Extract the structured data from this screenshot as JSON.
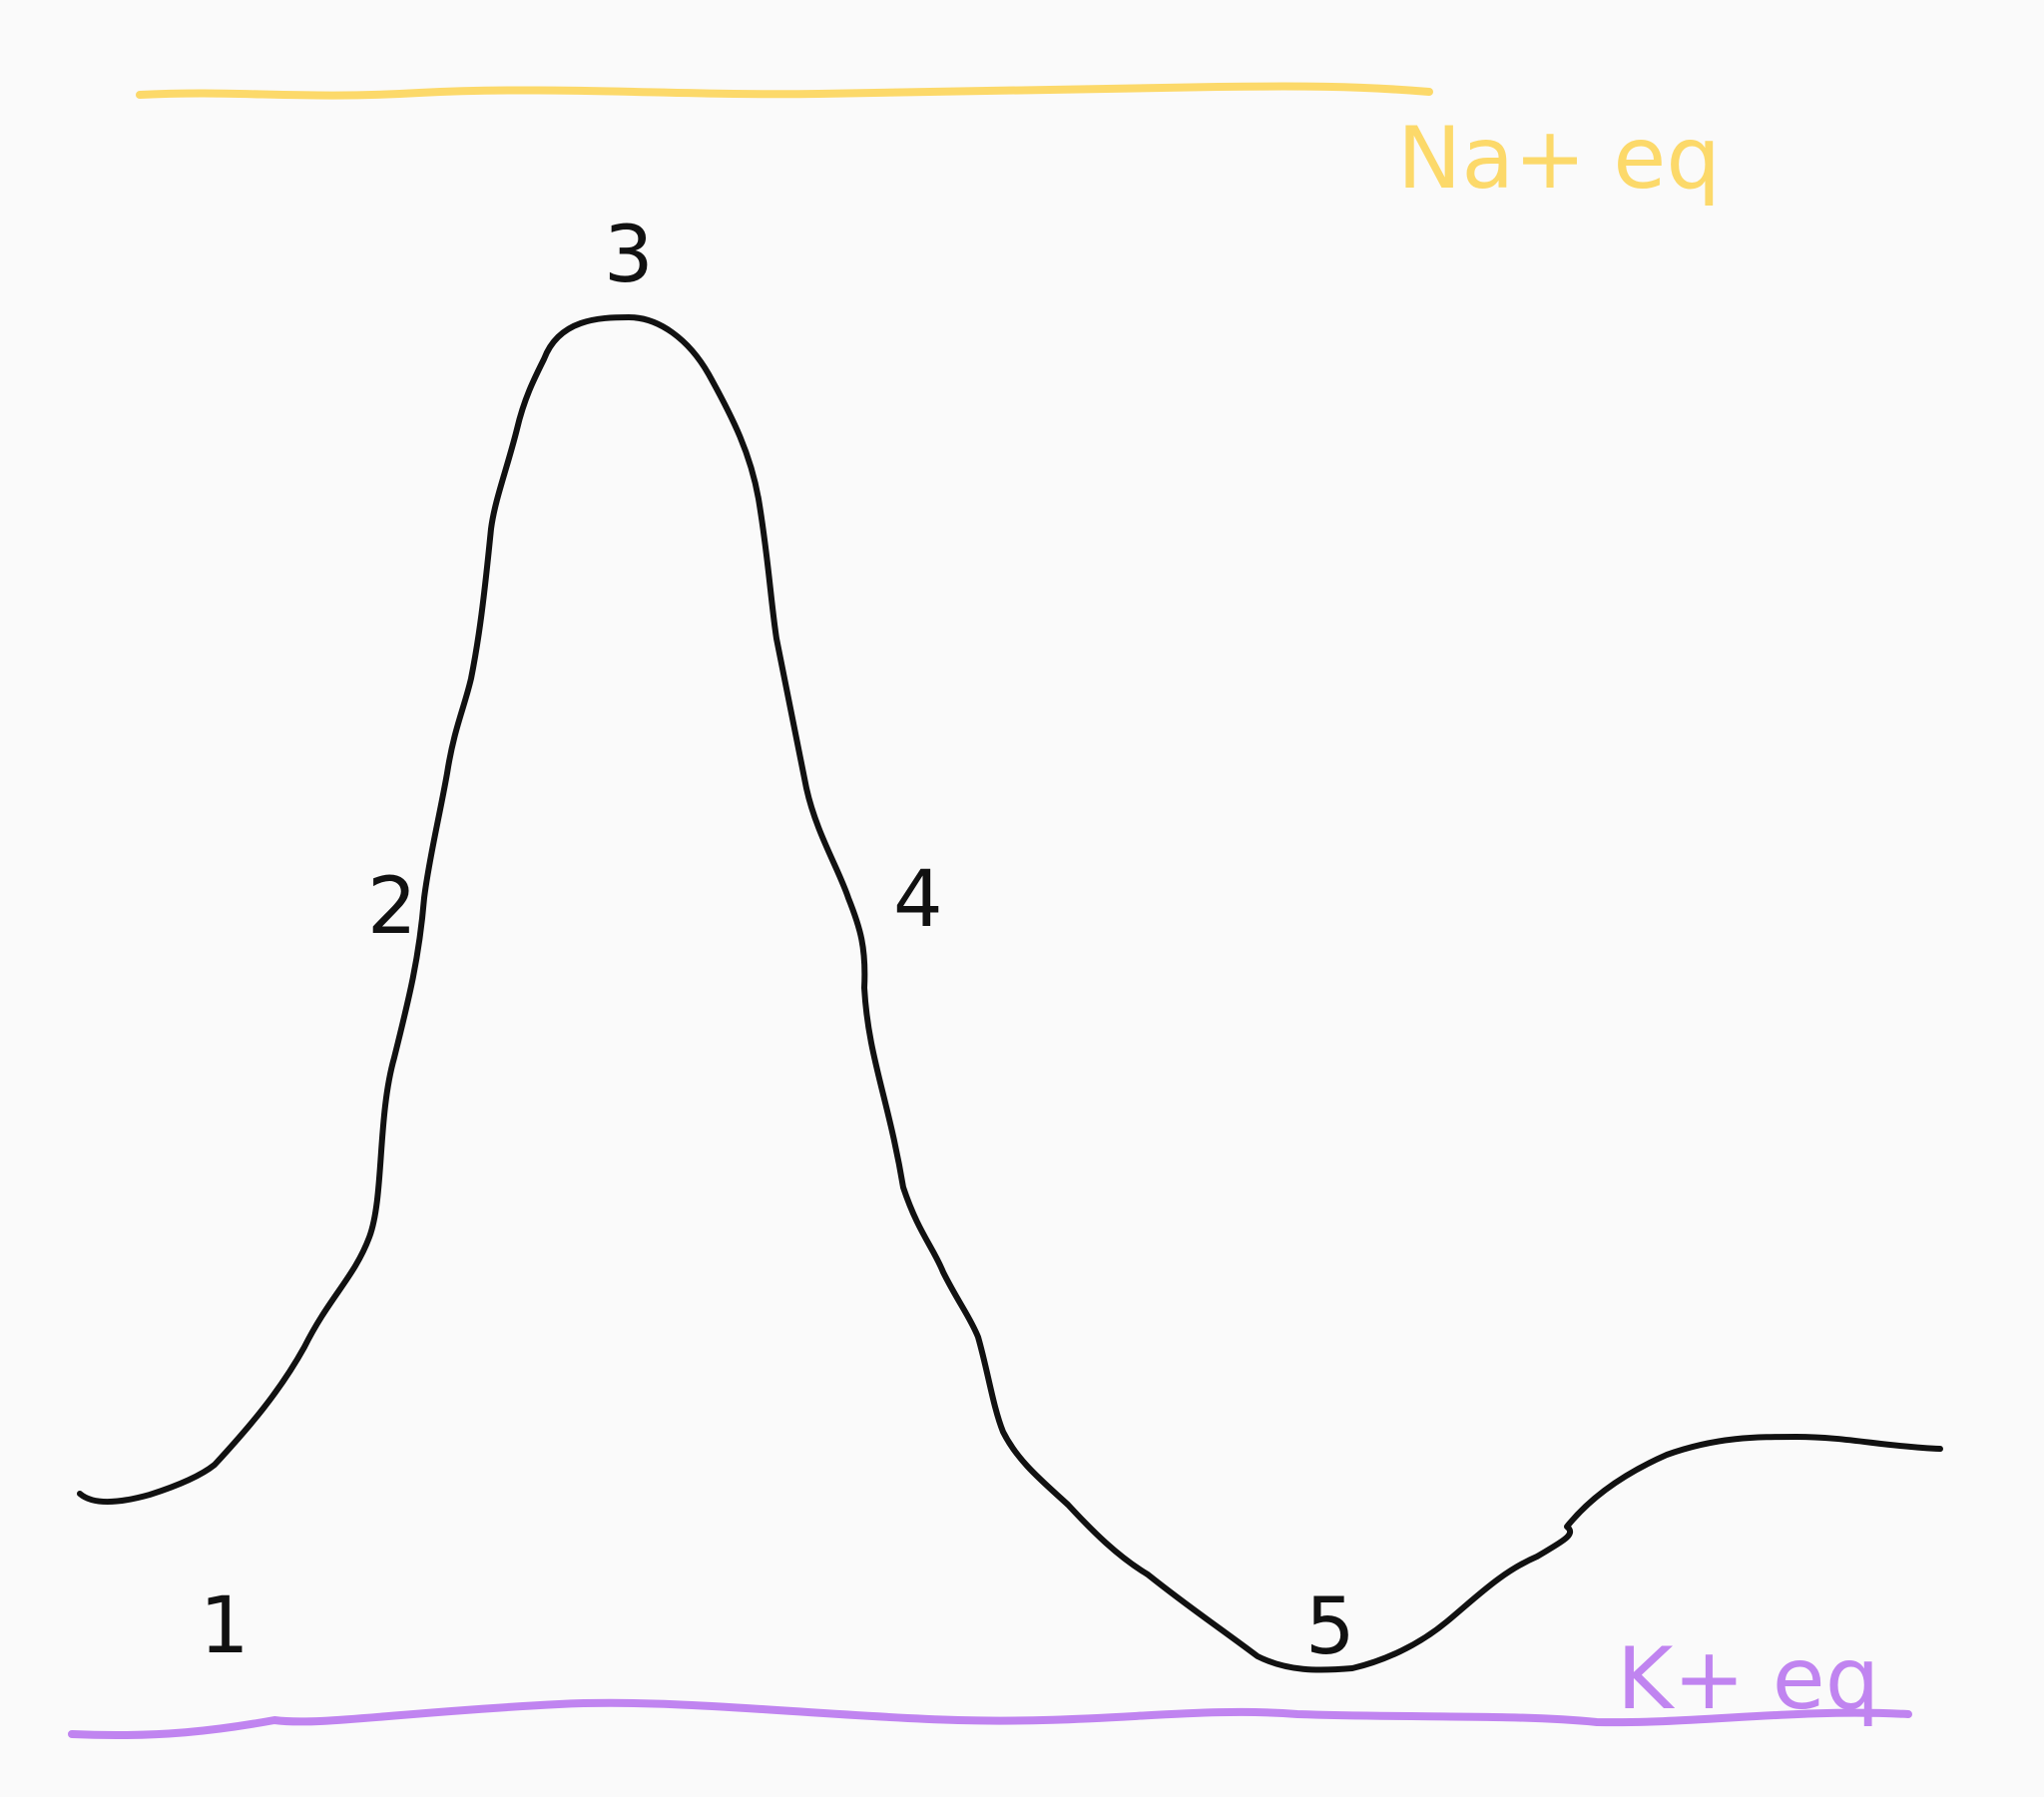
{
  "diagram": {
    "colors": {
      "background": "#fafafa",
      "curve": "#111111",
      "na_equilibrium": "#fcd96a",
      "k_equilibrium": "#c084f0"
    },
    "reference_lines": [
      {
        "id": "na",
        "label": "Na+ eq",
        "color": "#fcd96a"
      },
      {
        "id": "k",
        "label": "K+ eq",
        "color": "#c084f0"
      }
    ],
    "phase_labels": [
      "1",
      "2",
      "3",
      "4",
      "5"
    ]
  }
}
